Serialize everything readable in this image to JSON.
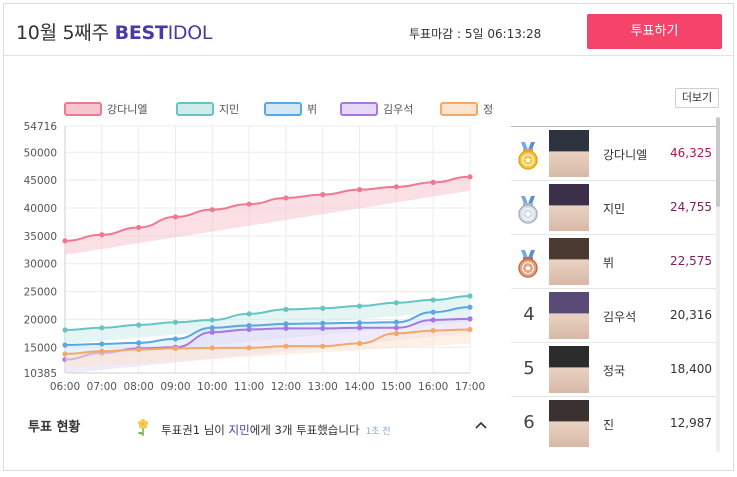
{
  "header": {
    "title_week": "10월 5째주",
    "title_best": "BEST",
    "title_idol": "IDOL",
    "deadline": "투표마감 : 5일 06:13:28",
    "vote_button": "투표하기"
  },
  "more_button": "더보기",
  "chart_data": {
    "type": "line",
    "x": [
      "06:00",
      "07:00",
      "08:00",
      "09:00",
      "10:00",
      "11:00",
      "12:00",
      "13:00",
      "14:00",
      "15:00",
      "16:00",
      "17:00"
    ],
    "yticks": [
      10385,
      15000,
      20000,
      25000,
      30000,
      35000,
      40000,
      45000,
      50000,
      54716
    ],
    "ylim": [
      10385,
      54716
    ],
    "legend_position": "top-left",
    "grid": true,
    "series": [
      {
        "name": "강다니엘",
        "color": "#f07892",
        "fill": "#f5c6d0",
        "values": [
          34100,
          35200,
          36500,
          38400,
          39700,
          40700,
          41800,
          42400,
          43300,
          43800,
          44600,
          45600
        ]
      },
      {
        "name": "지민",
        "color": "#66c5c2",
        "fill": "#cdeceb",
        "values": [
          18100,
          18500,
          19000,
          19500,
          19900,
          21000,
          21800,
          22000,
          22400,
          23000,
          23500,
          24200
        ]
      },
      {
        "name": "뷔",
        "color": "#5aa8e0",
        "fill": "#d3e7f6",
        "values": [
          15400,
          15600,
          15800,
          16500,
          18500,
          18900,
          19200,
          19300,
          19400,
          19500,
          21300,
          22200
        ]
      },
      {
        "name": "김우석",
        "color": "#a678e0",
        "fill": "#e6d8f6",
        "values": [
          12800,
          14000,
          14800,
          15000,
          17700,
          18200,
          18400,
          18400,
          18500,
          18500,
          19900,
          20100
        ]
      },
      {
        "name": "정국",
        "color": "#f3a86b",
        "fill": "#fce3cf",
        "values": [
          13800,
          14300,
          14600,
          14800,
          14900,
          14900,
          15200,
          15200,
          15700,
          17500,
          18000,
          18200
        ]
      }
    ]
  },
  "ranking": [
    {
      "rank": "1",
      "name": "강다니엘",
      "votes": "46,325",
      "medal": "gold-medal-icon",
      "avatar_bg": "#2e3340"
    },
    {
      "rank": "2",
      "name": "지민",
      "votes": "24,755",
      "medal": "silver-medal-icon",
      "avatar_bg": "#3c2f4a"
    },
    {
      "rank": "3",
      "name": "뷔",
      "votes": "22,575",
      "medal": "bronze-medal-icon",
      "avatar_bg": "#4a3a30"
    },
    {
      "rank": "4",
      "name": "김우석",
      "votes": "20,316",
      "medal": "",
      "avatar_bg": "#5a4a78"
    },
    {
      "rank": "5",
      "name": "정국",
      "votes": "18,400",
      "medal": "",
      "avatar_bg": "#2c2c2c"
    },
    {
      "rank": "6",
      "name": "진",
      "votes": "12,987",
      "medal": "",
      "avatar_bg": "#3a3230"
    }
  ],
  "status": {
    "label": "투표 현황",
    "msg_prefix": "투표권1 님이 ",
    "msg_target": "지민",
    "msg_suffix": "에게 3개 투표했습니다",
    "time": "1초 전"
  }
}
